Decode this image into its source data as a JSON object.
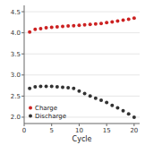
{
  "chart_data": {
    "type": "scatter",
    "xlabel": "Cycle",
    "x": [
      1,
      2,
      3,
      4,
      5,
      6,
      7,
      8,
      9,
      10,
      11,
      12,
      13,
      14,
      15,
      16,
      17,
      18,
      19,
      20
    ],
    "series": [
      {
        "name": "Charge",
        "color": "#cc2222",
        "marker": "circle",
        "values": [
          4.02,
          4.08,
          4.1,
          4.12,
          4.13,
          4.14,
          4.15,
          4.16,
          4.17,
          4.18,
          4.19,
          4.2,
          4.21,
          4.22,
          4.24,
          4.26,
          4.28,
          4.3,
          4.32,
          4.35
        ]
      },
      {
        "name": "Discharge",
        "color": "#333333",
        "marker": "circle",
        "values": [
          2.68,
          2.72,
          2.73,
          2.73,
          2.73,
          2.72,
          2.71,
          2.7,
          2.68,
          2.62,
          2.56,
          2.5,
          2.45,
          2.4,
          2.35,
          2.28,
          2.22,
          2.15,
          2.08,
          2.0
        ]
      }
    ],
    "xlim": [
      0,
      21
    ],
    "ylim": [
      1.85,
      4.65
    ],
    "xticks": [
      0,
      5,
      10,
      15,
      20
    ],
    "yticks": [
      {
        "value": 2.0,
        "label": "2.0"
      },
      2.5,
      {
        "value": 3.0,
        "label": "3.0"
      },
      3.5,
      {
        "value": 4.0,
        "label": "4.0"
      },
      4.5
    ],
    "legend": "lower left"
  }
}
